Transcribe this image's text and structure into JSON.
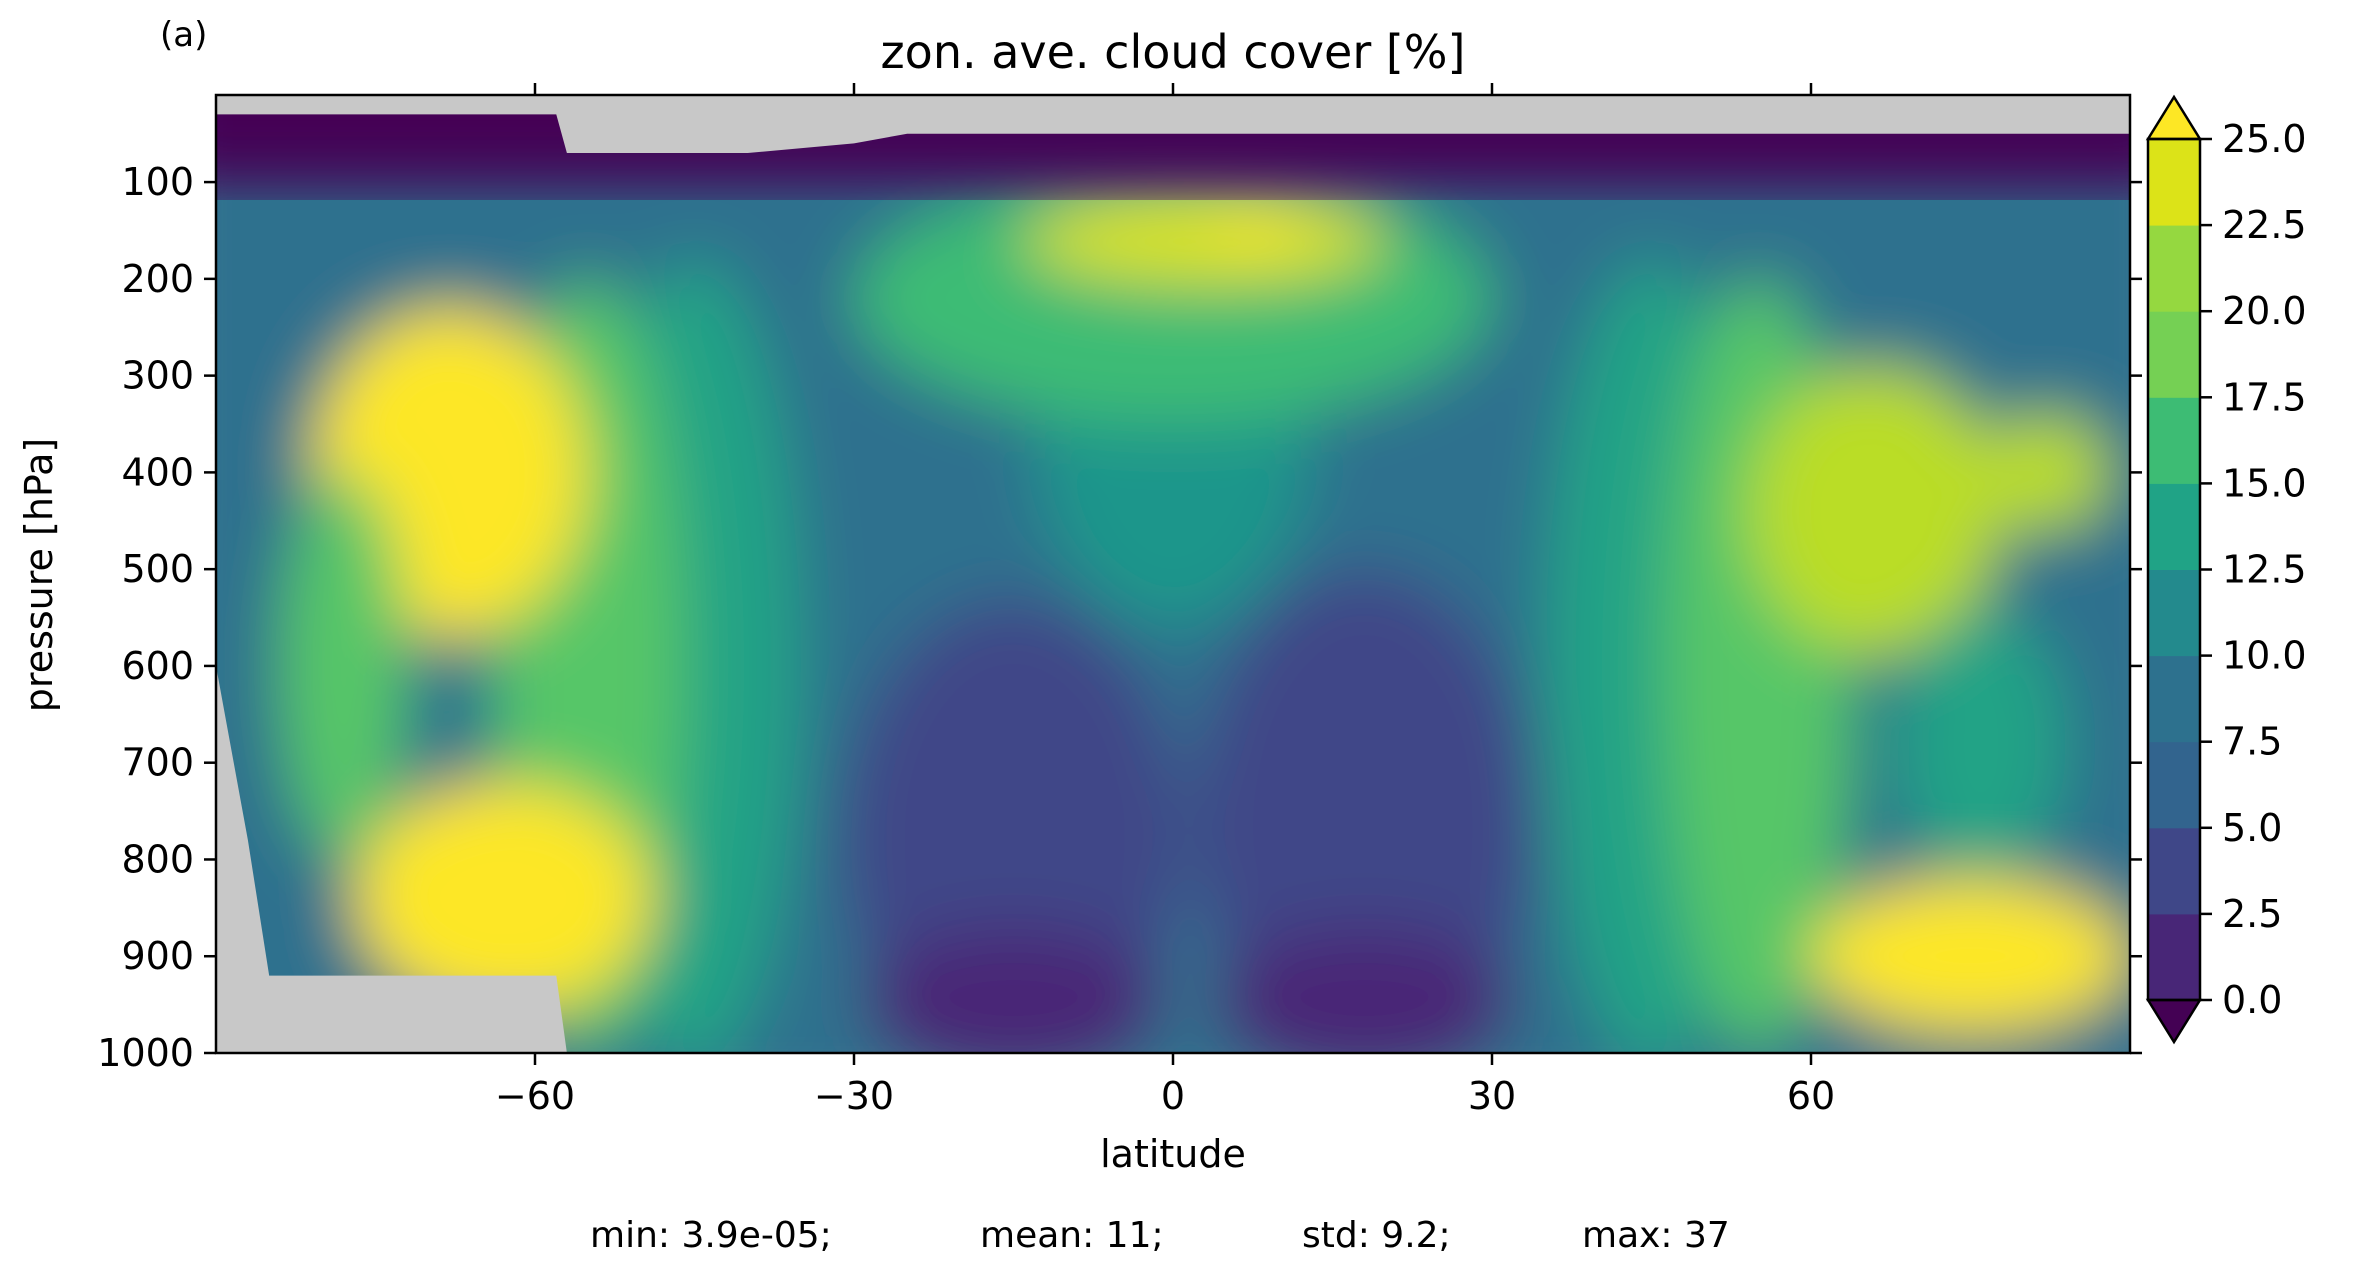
{
  "panel_label": "(a)",
  "chart_data": {
    "type": "heatmap",
    "title": "zon. ave. cloud cover [%]",
    "xlabel": "latitude",
    "ylabel": "pressure [hPa]",
    "xlim": [
      -90,
      90
    ],
    "ylim": [
      1000,
      10
    ],
    "y_inverted": true,
    "xticks": [
      -60,
      -30,
      0,
      30,
      60
    ],
    "xtick_labels": [
      "−60",
      "−30",
      "0",
      "30",
      "60"
    ],
    "yticks": [
      100,
      200,
      300,
      400,
      500,
      600,
      700,
      800,
      900,
      1000
    ],
    "ytick_labels": [
      "100",
      "200",
      "300",
      "400",
      "500",
      "600",
      "700",
      "800",
      "900",
      "1000"
    ],
    "colorbar": {
      "levels": [
        0.0,
        2.5,
        5.0,
        7.5,
        10.0,
        12.5,
        15.0,
        17.5,
        20.0,
        22.5,
        25.0
      ],
      "tick_labels": [
        "0.0",
        "2.5",
        "5.0",
        "7.5",
        "10.0",
        "12.5",
        "15.0",
        "17.5",
        "20.0",
        "22.5",
        "25.0"
      ],
      "extend": "both",
      "colors": [
        "#481567",
        "#482677",
        "#453781",
        "#3f4788",
        "#39558c",
        "#32648e",
        "#2d718e",
        "#287d8e",
        "#238a8d",
        "#1f968b",
        "#20a386",
        "#29af7f",
        "#3dbc74",
        "#56c667",
        "#75d054",
        "#95d840",
        "#badd26",
        "#dce318",
        "#fde725"
      ],
      "under_color": "#440154",
      "over_color": "#fde725"
    },
    "missing_color": "#c8c8c8",
    "features": [
      {
        "name": "stratosphere, low cloud",
        "lat_range": [
          -90,
          90
        ],
        "pressure_range": [
          10,
          150
        ],
        "value": 2
      },
      {
        "name": "tropical upper-tropospheric maximum",
        "lat": 3,
        "pressure": 160,
        "value": 24
      },
      {
        "name": "southern mid-latitude low cloud max",
        "lat": -62,
        "pressure": 850,
        "value": 26
      },
      {
        "name": "southern mid-latitude upper cloud max",
        "lat": -68,
        "pressure": 380,
        "value": 26
      },
      {
        "name": "northern mid-latitude low cloud max",
        "lat": 68,
        "pressure": 900,
        "value": 26
      },
      {
        "name": "northern mid-latitude cloud max",
        "lat": 65,
        "pressure": 420,
        "value": 25
      },
      {
        "name": "subtropical minimum (south)",
        "lat": -15,
        "pressure": 700,
        "value": 4
      },
      {
        "name": "subtropical minimum (north)",
        "lat": 18,
        "pressure": 700,
        "value": 4
      },
      {
        "name": "Antarctic masked region",
        "lat_range": [
          -90,
          -55
        ],
        "pressure_range": [
          600,
          1000
        ]
      }
    ],
    "stats": {
      "min": "min: 3.9e-05;",
      "mean": "mean: 11;",
      "std": "std: 9.2;",
      "max": "max: 37"
    }
  }
}
